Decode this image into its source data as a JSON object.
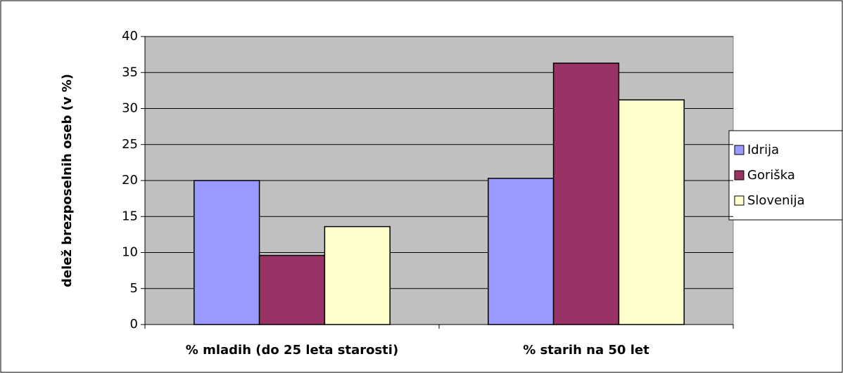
{
  "chart_data": {
    "type": "bar",
    "y_label": "delež brezposelnih oseb (v %)",
    "categories": [
      "% mladih (do 25 leta starosti)",
      "% starih na 50 let"
    ],
    "series": [
      {
        "name": "Idrija",
        "color": "#9999ff",
        "values": [
          20,
          20.3
        ]
      },
      {
        "name": "Goriška",
        "color": "#993366",
        "values": [
          9.6,
          36.3
        ]
      },
      {
        "name": "Slovenija",
        "color": "#ffffcc",
        "values": [
          13.6,
          31.2
        ]
      }
    ],
    "ylim": [
      0,
      40
    ],
    "yticks": [
      0,
      5,
      10,
      15,
      20,
      25,
      30,
      35,
      40
    ],
    "grid": true,
    "legend": "right"
  }
}
